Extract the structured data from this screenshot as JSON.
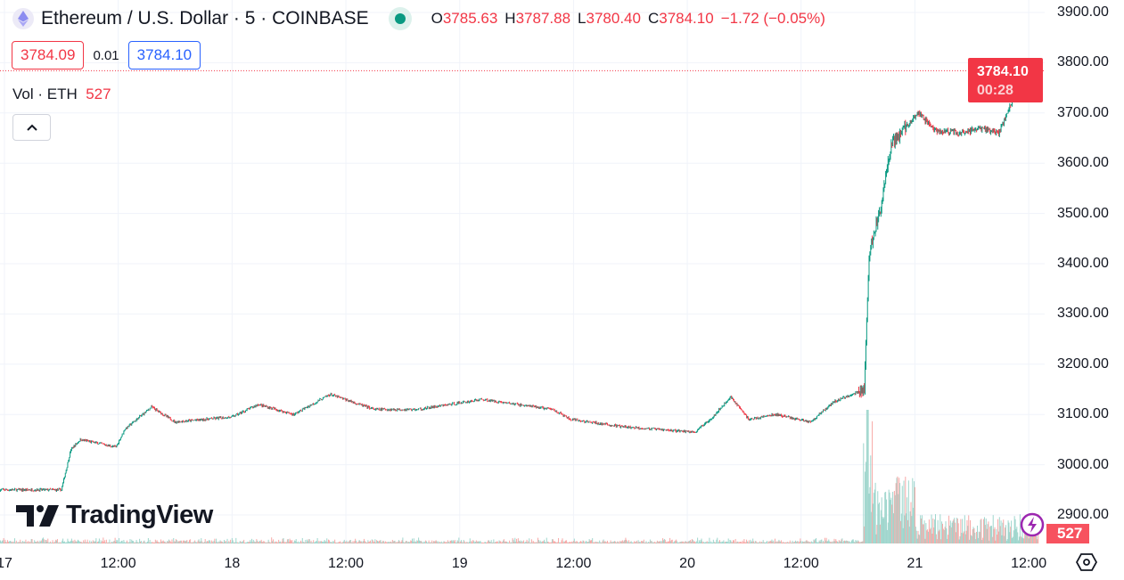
{
  "header": {
    "symbol": "Ethereum / U.S. Dollar · 5 · COINBASE",
    "status_color": "#089981",
    "ohlc": [
      {
        "k": "O",
        "v": "3785.63"
      },
      {
        "k": "H",
        "v": "3787.88"
      },
      {
        "k": "L",
        "v": "3780.40"
      },
      {
        "k": "C",
        "v": "3784.10"
      }
    ],
    "change": "−1.72 (−0.05%)"
  },
  "quote": {
    "bid": "3784.09",
    "spread": "0.01",
    "ask": "3784.10"
  },
  "volume_legend": {
    "label": "Vol · ETH",
    "value": "527"
  },
  "price_tag": {
    "price": "3784.10",
    "countdown": "00:28"
  },
  "volume_tag": "527",
  "logo": "TradingView",
  "colors": {
    "up": "#089981",
    "down": "#f23645",
    "vol_up": "#9fd6cd",
    "vol_down": "#f7a9a7"
  },
  "chart_data": {
    "type": "candlestick",
    "interval": "5",
    "y_ticks": [
      "3900.00",
      "3800.00",
      "3700.00",
      "3600.00",
      "3500.00",
      "3400.00",
      "3300.00",
      "3200.00",
      "3100.00",
      "3000.00",
      "2900.00"
    ],
    "ylim": [
      2850,
      3925
    ],
    "x_ticks": [
      "17",
      "12:00",
      "18",
      "12:00",
      "19",
      "12:00",
      "20",
      "12:00",
      "21",
      "12:00"
    ],
    "price_path": [
      [
        "11-16 23:30",
        2950
      ],
      [
        "11-17 06:00",
        2950
      ],
      [
        "11-17 07:00",
        3030
      ],
      [
        "11-17 08:00",
        3050
      ],
      [
        "11-17 11:45",
        3035
      ],
      [
        "11-17 12:40",
        3070
      ],
      [
        "11-17 15:30",
        3115
      ],
      [
        "11-17 18:00",
        3085
      ],
      [
        "11-18 00:00",
        3095
      ],
      [
        "11-18 02:45",
        3120
      ],
      [
        "11-18 06:30",
        3100
      ],
      [
        "11-18 10:20",
        3140
      ],
      [
        "11-18 15:00",
        3110
      ],
      [
        "11-18 19:40",
        3110
      ],
      [
        "11-19 02:20",
        3130
      ],
      [
        "11-19 09:50",
        3110
      ],
      [
        "11-19 11:40",
        3090
      ],
      [
        "11-19 17:20",
        3075
      ],
      [
        "11-20 00:50",
        3065
      ],
      [
        "11-20 02:40",
        3095
      ],
      [
        "11-20 04:35",
        3135
      ],
      [
        "11-20 06:30",
        3090
      ],
      [
        "11-20 09:20",
        3100
      ],
      [
        "11-20 13:00",
        3085
      ],
      [
        "11-20 15:25",
        3125
      ],
      [
        "11-20 18:40",
        3150
      ],
      [
        "11-20 19:10",
        3420
      ],
      [
        "11-20 20:35",
        3530
      ],
      [
        "11-20 21:30",
        3640
      ],
      [
        "11-21 00:20",
        3700
      ],
      [
        "11-21 02:10",
        3665
      ],
      [
        "11-21 05:00",
        3660
      ],
      [
        "11-21 06:55",
        3670
      ],
      [
        "11-21 08:50",
        3660
      ],
      [
        "11-21 10:10",
        3720
      ],
      [
        "11-21 11:05",
        3800
      ],
      [
        "11-21 13:00",
        3784.1
      ]
    ],
    "last_price": 3784.1
  }
}
